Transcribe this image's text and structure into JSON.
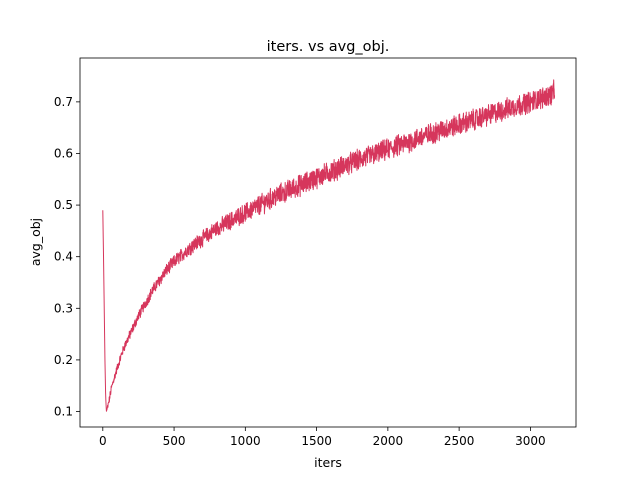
{
  "chart_data": {
    "type": "line",
    "title": "iters. vs avg_obj.",
    "xlabel": "iters",
    "ylabel": "avg_obj",
    "xlim": [
      -160,
      3320
    ],
    "ylim": [
      0.07,
      0.785
    ],
    "xticks": [
      0,
      500,
      1000,
      1500,
      2000,
      2500,
      3000
    ],
    "yticks": [
      0.1,
      0.2,
      0.3,
      0.4,
      0.5,
      0.6,
      0.7
    ],
    "grid": false,
    "legend": "none",
    "color": "#d6365c",
    "series": [
      {
        "x": [
          0,
          5,
          10,
          15,
          20,
          25,
          30,
          35,
          40,
          45,
          50,
          60,
          70,
          80,
          100,
          125,
          150,
          175,
          200,
          250,
          300,
          350,
          400,
          450,
          500,
          600,
          700,
          800,
          900,
          1000,
          1100,
          1200,
          1300,
          1400,
          1500,
          1600,
          1700,
          1800,
          1900,
          2000,
          2100,
          2200,
          2300,
          2400,
          2500,
          2600,
          2700,
          2800,
          2900,
          3000,
          3100,
          3150,
          3160,
          3170
        ],
        "y": [
          0.49,
          0.4,
          0.3,
          0.2,
          0.13,
          0.1,
          0.105,
          0.11,
          0.115,
          0.122,
          0.13,
          0.145,
          0.155,
          0.165,
          0.183,
          0.205,
          0.225,
          0.24,
          0.255,
          0.285,
          0.31,
          0.335,
          0.355,
          0.375,
          0.39,
          0.415,
          0.435,
          0.455,
          0.47,
          0.485,
          0.5,
          0.515,
          0.528,
          0.54,
          0.553,
          0.565,
          0.577,
          0.588,
          0.598,
          0.608,
          0.618,
          0.628,
          0.638,
          0.647,
          0.656,
          0.665,
          0.674,
          0.683,
          0.692,
          0.7,
          0.71,
          0.715,
          0.72,
          0.72
        ]
      }
    ]
  }
}
